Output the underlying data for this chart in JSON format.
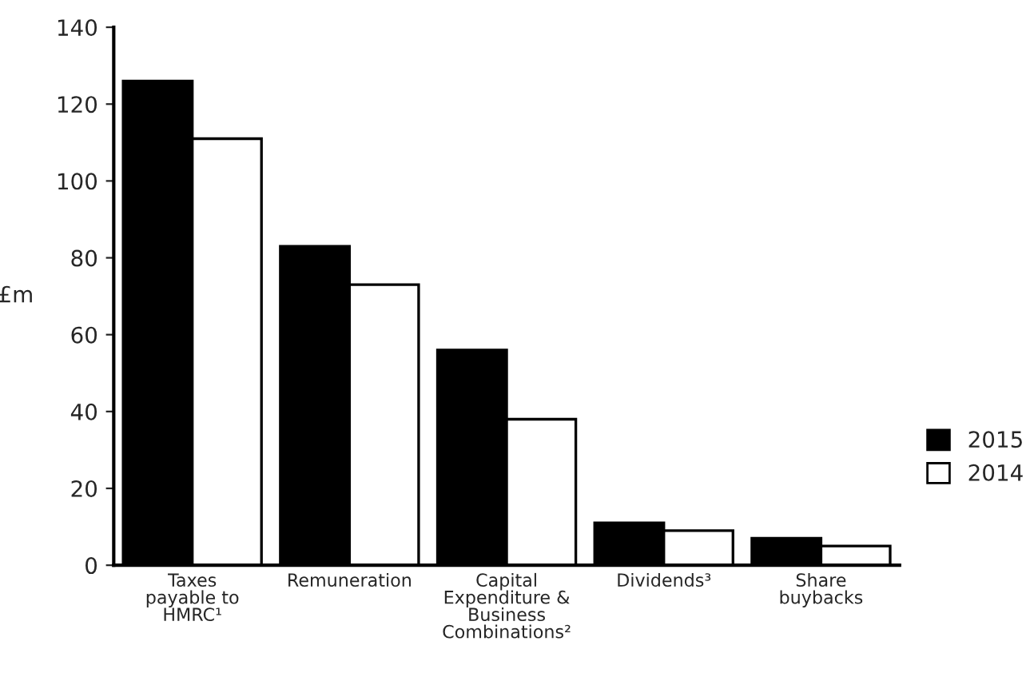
{
  "chart_data": {
    "type": "bar",
    "ylabel": "£m",
    "categories": [
      "Taxes\npayable to\nHMRC¹",
      "Remuneration",
      "Capital\nExpenditure &\nBusiness\nCombinations²",
      "Dividends³",
      "Share\nbuybacks"
    ],
    "series": [
      {
        "name": "2015",
        "color": "#000000",
        "values": [
          126,
          83,
          56,
          11,
          7
        ]
      },
      {
        "name": "2014",
        "color": "#ffffff",
        "values": [
          111,
          73,
          38,
          9,
          5
        ]
      }
    ],
    "ylim": [
      0,
      140
    ],
    "yticks": [
      0,
      20,
      40,
      60,
      80,
      100,
      120,
      140
    ],
    "grid": false,
    "legend": "right"
  }
}
